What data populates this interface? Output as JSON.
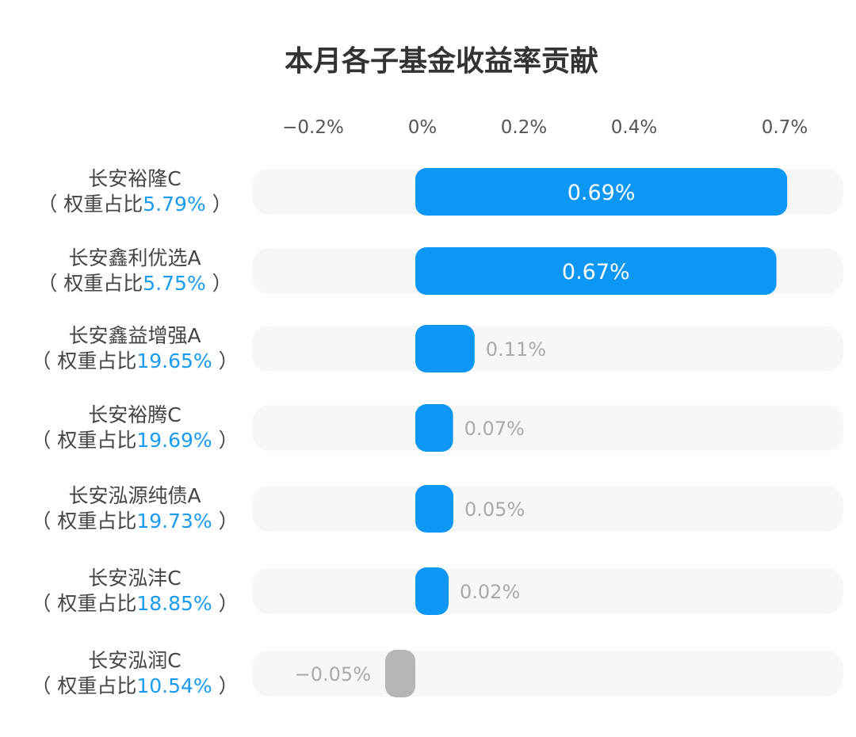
{
  "chart_data": {
    "type": "bar",
    "orientation": "horizontal",
    "title": "本月各子基金收益率贡献",
    "x_ticks": [
      "−0.2%",
      "0%",
      "0.2%",
      "0.4%",
      "0.7%"
    ],
    "x_tick_values": [
      -0.2,
      0,
      0.2,
      0.4,
      0.7
    ],
    "weight_prefix": "（ 权重占比",
    "weight_suffix": " ）",
    "colors": {
      "positive": "#0c97f4",
      "negative": "#b5b5b5",
      "track": "#f7f7f7",
      "weight": "#1a9bf0"
    },
    "categories": [
      {
        "name": "长安裕隆C",
        "weight": "5.79%",
        "value": 0.69,
        "label": "0.69%"
      },
      {
        "name": "长安鑫利优选A",
        "weight": "5.75%",
        "value": 0.67,
        "label": "0.67%"
      },
      {
        "name": "长安鑫益增强A",
        "weight": "19.65%",
        "value": 0.11,
        "label": "0.11%"
      },
      {
        "name": "长安裕腾C",
        "weight": "19.69%",
        "value": 0.07,
        "label": "0.07%"
      },
      {
        "name": "长安泓源纯债A",
        "weight": "19.73%",
        "value": 0.05,
        "label": "0.05%"
      },
      {
        "name": "长安泓沣C",
        "weight": "18.85%",
        "value": 0.02,
        "label": "0.02%"
      },
      {
        "name": "长安泓润C",
        "weight": "10.54%",
        "value": -0.05,
        "label": "−0.05%"
      }
    ]
  }
}
